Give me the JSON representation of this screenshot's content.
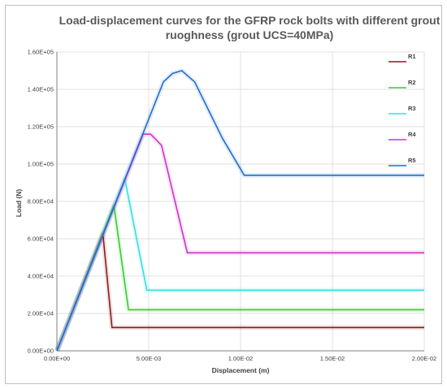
{
  "chart_data": {
    "type": "line",
    "title_line1": "Load-displacement curves for the GFRP rock bolts with different grout",
    "title_line2": "ruoghness (grout UCS=40MPa)",
    "xlabel": "Displacement (m)",
    "ylabel": "Load (N)",
    "xlim": [
      0,
      0.02
    ],
    "ylim": [
      0,
      160000
    ],
    "x_ticks": [
      0,
      0.005,
      0.01,
      0.015,
      0.02
    ],
    "x_tick_labels": [
      "0.00E+00",
      "5.00E-03",
      "1.00E-02",
      "1.50E-02",
      "2.00E-02"
    ],
    "y_ticks": [
      0,
      20000,
      40000,
      60000,
      80000,
      100000,
      120000,
      140000,
      160000
    ],
    "y_tick_labels": [
      "0.00E+00",
      "2.00E+04",
      "4.00E+04",
      "6.00E+04",
      "8.00E+04",
      "1.00E+05",
      "1.20E+05",
      "1.40E+05",
      "1.60E+05"
    ],
    "grid": true,
    "legend_position": "right",
    "series": [
      {
        "name": "R1",
        "color": "#8B1A1A",
        "x": [
          0,
          0.0025,
          0.003,
          0.02
        ],
        "y": [
          0,
          63000,
          12500,
          12500
        ]
      },
      {
        "name": "R2",
        "color": "#33CC33",
        "x": [
          0,
          0.0031,
          0.0039,
          0.02
        ],
        "y": [
          0,
          78000,
          22000,
          22000
        ]
      },
      {
        "name": "R3",
        "color": "#33E0E0",
        "x": [
          0,
          0.0037,
          0.0049,
          0.02
        ],
        "y": [
          0,
          92000,
          32500,
          32500
        ]
      },
      {
        "name": "R4",
        "color": "#CC33CC",
        "x": [
          0,
          0.0047,
          0.0051,
          0.0057,
          0.0071,
          0.02
        ],
        "y": [
          0,
          116000,
          116000,
          110000,
          52500,
          52500
        ]
      },
      {
        "name": "R5",
        "color": "#1F6FD0",
        "x": [
          0,
          0.0058,
          0.0063,
          0.0068,
          0.0075,
          0.009,
          0.0102,
          0.02
        ],
        "y": [
          0,
          144000,
          148500,
          150000,
          144000,
          114000,
          94000,
          94000
        ]
      }
    ]
  }
}
